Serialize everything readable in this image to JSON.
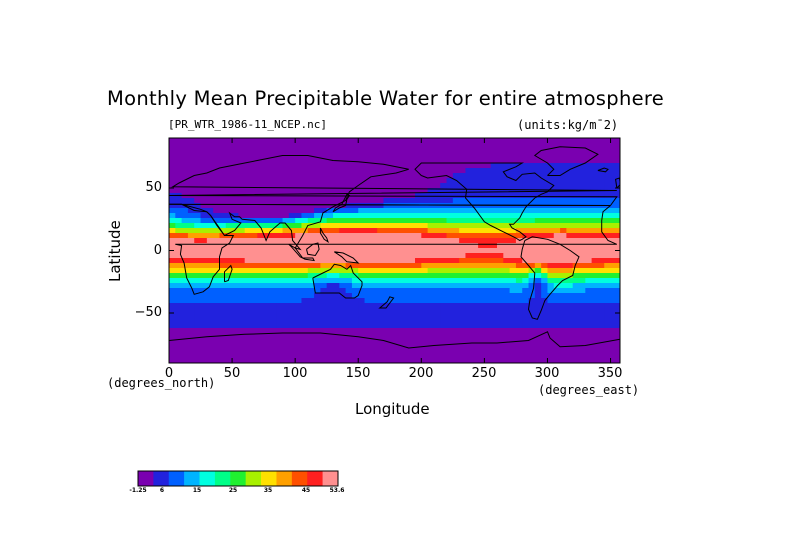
{
  "title": "Monthly Mean Precipitable Water for entire atmosphere",
  "file_label": "[PR_WTR_1986-11_NCEP.nc]",
  "units_label": "(units:kg/m¯2)",
  "xlabel": "Longitude",
  "ylabel": "Latitude",
  "x_units": "(degrees_east)",
  "y_units": "(degrees_north)",
  "x_ticks": [
    "0",
    "50",
    "100",
    "150",
    "200",
    "250",
    "300",
    "350"
  ],
  "y_ticks": [
    "50",
    "0",
    "−50"
  ],
  "colorbar": {
    "colors": [
      "#7a00b0",
      "#2222dd",
      "#0060ff",
      "#00b4ff",
      "#00ffe0",
      "#00ff88",
      "#20f030",
      "#a8f000",
      "#ffe000",
      "#ffa000",
      "#ff5000",
      "#ff2020",
      "#ff9090"
    ],
    "tick_labels": [
      "-1.25",
      "6",
      "15",
      "25",
      "35",
      "45",
      "53.6"
    ]
  },
  "chart_data": {
    "type": "heatmap",
    "title": "Monthly Mean Precipitable Water for entire atmosphere",
    "xlabel": "Longitude",
    "ylabel": "Latitude",
    "xlim": [
      0,
      357.5
    ],
    "ylim": [
      -90,
      90
    ],
    "x_ticks": [
      0,
      50,
      100,
      150,
      200,
      250,
      300,
      350
    ],
    "y_ticks": [
      50,
      0,
      -50
    ],
    "zrange": [
      -1.25,
      53.6
    ],
    "coastlines": true,
    "colormap": [
      "#7a00b0",
      "#2222dd",
      "#0060ff",
      "#00b4ff",
      "#00ffe0",
      "#00ff88",
      "#20f030",
      "#a8f000",
      "#ffe000",
      "#ffa000",
      "#ff5000",
      "#ff2020",
      "#ff9090"
    ]
  }
}
